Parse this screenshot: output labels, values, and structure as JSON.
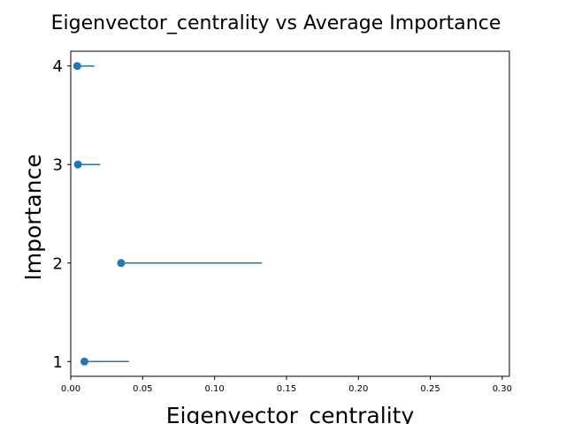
{
  "chart_data": {
    "type": "scatter",
    "title": "Eigenvector_centrality vs Average Importance",
    "xlabel": "Eigenvector_centrality",
    "ylabel": "Importance",
    "xlim": [
      0.0,
      0.305
    ],
    "ylim": [
      0.85,
      4.15
    ],
    "x_ticks": [
      0.0,
      0.05,
      0.1,
      0.15,
      0.2,
      0.25,
      0.3
    ],
    "x_tick_labels": [
      "0.00",
      "0.05",
      "0.10",
      "0.15",
      "0.20",
      "0.25",
      "0.30"
    ],
    "y_ticks": [
      1,
      2,
      3,
      4
    ],
    "y_tick_labels": [
      "1",
      "2",
      "3",
      "4"
    ],
    "grid": false,
    "color": "#1f77b4",
    "points": [
      {
        "y": 1,
        "x": 0.0095,
        "xerr_low": 0.0,
        "xerr_high": 0.031
      },
      {
        "y": 2,
        "x": 0.035,
        "xerr_low": 0.0,
        "xerr_high": 0.098
      },
      {
        "y": 3,
        "x": 0.005,
        "xerr_low": 0.0,
        "xerr_high": 0.0155
      },
      {
        "y": 4,
        "x": 0.0045,
        "xerr_low": 0.0,
        "xerr_high": 0.012
      }
    ]
  }
}
